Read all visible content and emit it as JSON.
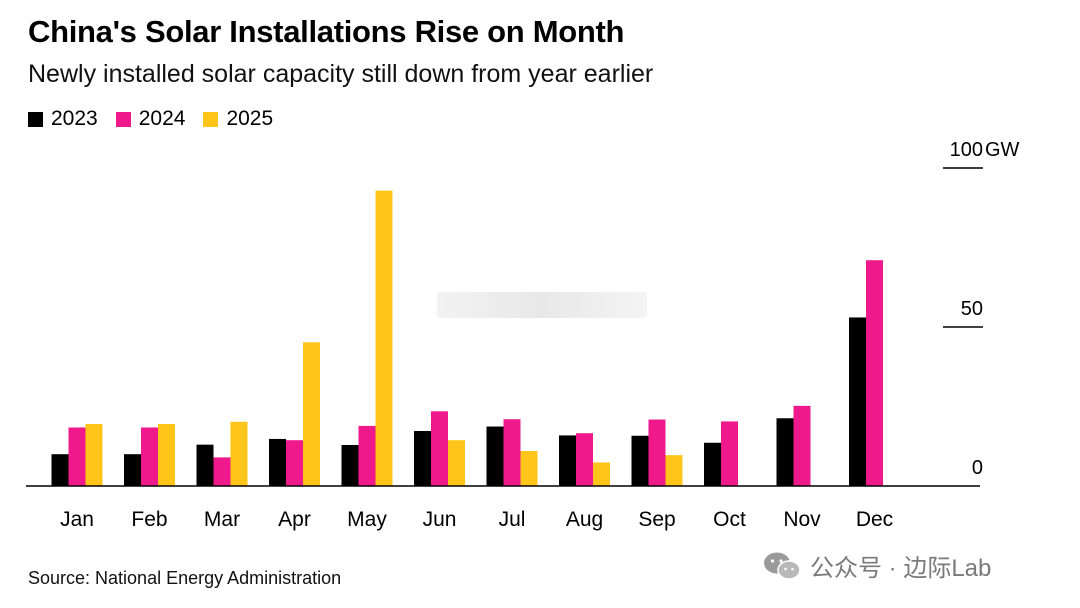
{
  "header": {
    "title": "China's Solar Installations Rise on Month",
    "subtitle": "Newly installed solar capacity still down from year earlier"
  },
  "footer": {
    "source": "Source: National Energy Administration",
    "watermark": "公众号 · 边际Lab"
  },
  "chart_data": {
    "type": "bar",
    "title": "China's Solar Installations Rise on Month",
    "subtitle": "Newly installed solar capacity still down from year earlier",
    "xlabel": "",
    "ylabel": "GW",
    "ylim": [
      0,
      100
    ],
    "yticks": [
      {
        "value": 0,
        "label": "0"
      },
      {
        "value": 50,
        "label": "50"
      },
      {
        "value": 100,
        "label": "100"
      }
    ],
    "yunit": "GW",
    "legend_position": "top-left",
    "categories": [
      "Jan",
      "Feb",
      "Mar",
      "Apr",
      "May",
      "Jun",
      "Jul",
      "Aug",
      "Sep",
      "Oct",
      "Nov",
      "Dec"
    ],
    "series": [
      {
        "name": "2023",
        "color": "#000000",
        "values": [
          10.0,
          10.0,
          13.0,
          14.8,
          12.9,
          17.3,
          18.7,
          15.9,
          15.8,
          13.6,
          21.3,
          53.0
        ]
      },
      {
        "name": "2024",
        "color": "#f0198c",
        "values": [
          18.4,
          18.4,
          9.0,
          14.4,
          18.9,
          23.5,
          21.0,
          16.6,
          20.9,
          20.3,
          25.2,
          71.0
        ]
      },
      {
        "name": "2025",
        "color": "#ffc619",
        "values": [
          19.5,
          19.5,
          20.2,
          45.2,
          92.9,
          14.4,
          11.0,
          7.4,
          9.7,
          null,
          null,
          null
        ]
      }
    ]
  }
}
